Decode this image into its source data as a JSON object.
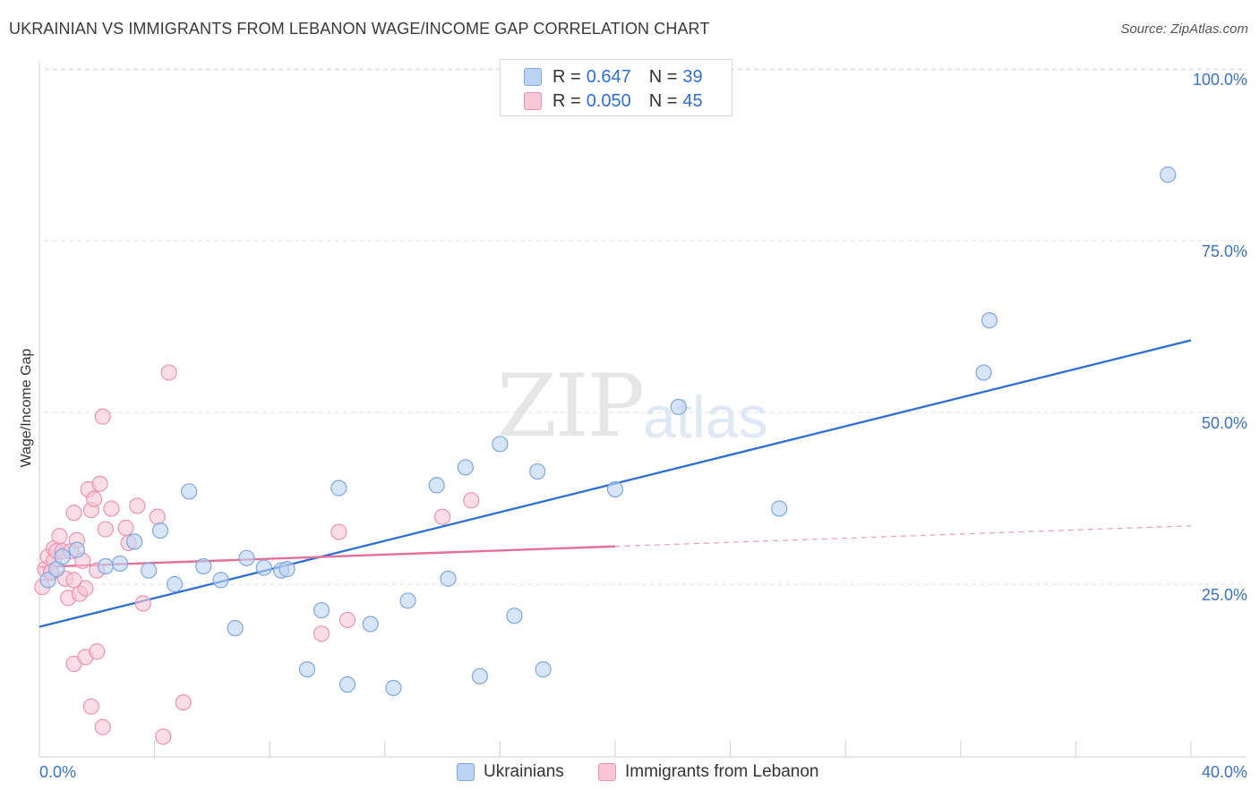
{
  "title": "UKRAINIAN VS IMMIGRANTS FROM LEBANON WAGE/INCOME GAP CORRELATION CHART",
  "source": "Source: ZipAtlas.com",
  "watermark": {
    "zip": "ZIP",
    "atlas": "atlas"
  },
  "colors": {
    "blue_fill": "#bcd4f4",
    "blue_stroke": "#7fa7e0",
    "blue_line": "#2f6fd4",
    "pink_fill": "#f9c6d6",
    "pink_stroke": "#ec93b0",
    "pink_line": "#e4709a",
    "grid": "#e3e3e3",
    "axis_text": "#3a72c8"
  },
  "legend": {
    "rows": [
      {
        "r_label": "R =",
        "r_value": "0.647",
        "n_label": "N =",
        "n_value": "39"
      },
      {
        "r_label": "R =",
        "r_value": "0.050",
        "n_label": "N =",
        "n_value": "45"
      }
    ]
  },
  "bottom_legend": {
    "items": [
      {
        "label": "Ukrainians"
      },
      {
        "label": "Immigrants from Lebanon"
      }
    ]
  },
  "chart_data": {
    "type": "scatter",
    "xlabel": "",
    "ylabel": "Wage/Income Gap",
    "xlim": [
      0,
      40
    ],
    "ylim": [
      0,
      100
    ],
    "x_tick_labels": [
      "0.0%",
      "40.0%"
    ],
    "y_tick_labels": [
      "25.0%",
      "50.0%",
      "75.0%",
      "100.0%"
    ],
    "y_ticks": [
      25,
      50,
      75,
      100
    ],
    "grid": true,
    "legend_position": "top-center",
    "series": [
      {
        "name": "Ukrainians",
        "color": "#bcd4f4",
        "points": [
          [
            0.3,
            25.6
          ],
          [
            0.6,
            27.2
          ],
          [
            0.8,
            29.0
          ],
          [
            1.3,
            30.0
          ],
          [
            2.3,
            27.6
          ],
          [
            2.8,
            28.0
          ],
          [
            3.3,
            31.2
          ],
          [
            3.8,
            27.0
          ],
          [
            4.2,
            32.8
          ],
          [
            4.7,
            25.0
          ],
          [
            5.2,
            38.5
          ],
          [
            5.7,
            27.6
          ],
          [
            6.3,
            25.6
          ],
          [
            6.8,
            18.6
          ],
          [
            7.2,
            28.8
          ],
          [
            7.8,
            27.4
          ],
          [
            8.4,
            27.0
          ],
          [
            8.6,
            27.2
          ],
          [
            9.3,
            12.6
          ],
          [
            9.8,
            21.2
          ],
          [
            10.4,
            39.0
          ],
          [
            10.7,
            10.4
          ],
          [
            11.5,
            19.2
          ],
          [
            12.3,
            9.9
          ],
          [
            12.8,
            22.6
          ],
          [
            13.8,
            39.4
          ],
          [
            14.2,
            25.8
          ],
          [
            14.8,
            42.0
          ],
          [
            15.3,
            11.6
          ],
          [
            16.0,
            45.4
          ],
          [
            16.5,
            20.4
          ],
          [
            17.3,
            41.4
          ],
          [
            17.5,
            12.6
          ],
          [
            20.0,
            38.8
          ],
          [
            22.2,
            50.8
          ],
          [
            25.7,
            36.0
          ],
          [
            32.8,
            55.8
          ],
          [
            33.0,
            63.4
          ],
          [
            39.2,
            84.6
          ]
        ],
        "trend": {
          "x": [
            0,
            40
          ],
          "y": [
            18.8,
            60.5
          ]
        }
      },
      {
        "name": "Immigrants from Lebanon",
        "color": "#f9c6d6",
        "points": [
          [
            0.1,
            24.6
          ],
          [
            0.2,
            27.2
          ],
          [
            0.3,
            29.0
          ],
          [
            0.4,
            26.6
          ],
          [
            0.5,
            28.4
          ],
          [
            0.5,
            30.2
          ],
          [
            0.6,
            29.8
          ],
          [
            0.7,
            32.0
          ],
          [
            0.8,
            29.8
          ],
          [
            0.9,
            25.8
          ],
          [
            1.0,
            23.0
          ],
          [
            1.1,
            29.8
          ],
          [
            1.2,
            35.4
          ],
          [
            1.3,
            31.4
          ],
          [
            1.4,
            23.6
          ],
          [
            1.5,
            28.4
          ],
          [
            1.6,
            24.4
          ],
          [
            1.7,
            38.8
          ],
          [
            1.8,
            35.8
          ],
          [
            1.9,
            37.4
          ],
          [
            2.0,
            27.0
          ],
          [
            2.1,
            39.6
          ],
          [
            2.2,
            49.4
          ],
          [
            2.3,
            33.0
          ],
          [
            2.5,
            36.0
          ],
          [
            3.0,
            33.2
          ],
          [
            3.1,
            31.0
          ],
          [
            3.4,
            36.4
          ],
          [
            3.6,
            22.2
          ],
          [
            4.1,
            34.8
          ],
          [
            4.5,
            55.8
          ],
          [
            5.0,
            7.8
          ],
          [
            1.2,
            13.4
          ],
          [
            1.6,
            14.4
          ],
          [
            2.0,
            15.2
          ],
          [
            1.8,
            7.2
          ],
          [
            2.2,
            4.2
          ],
          [
            4.3,
            2.8
          ],
          [
            1.2,
            25.6
          ],
          [
            10.4,
            32.6
          ],
          [
            10.7,
            19.8
          ],
          [
            9.8,
            17.8
          ],
          [
            14.0,
            34.8
          ],
          [
            15.0,
            37.2
          ],
          [
            0.4,
            26.8
          ]
        ],
        "trend": {
          "x": [
            0,
            20
          ],
          "y": [
            27.5,
            30.5
          ]
        },
        "trend_extension": {
          "x": [
            20,
            40
          ],
          "y": [
            30.5,
            33.5
          ]
        }
      }
    ]
  }
}
